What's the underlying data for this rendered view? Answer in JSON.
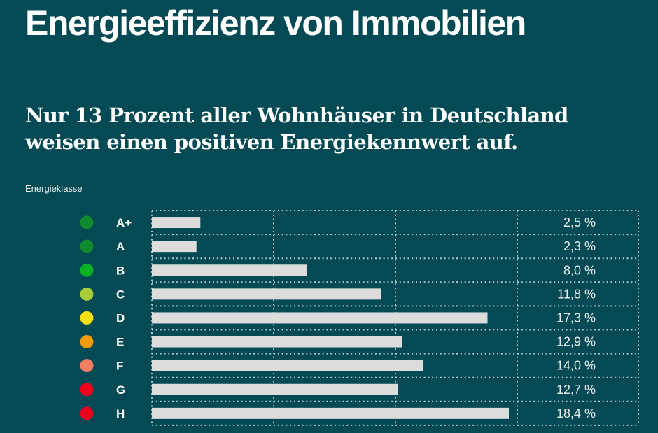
{
  "title": "Energieeffizienz von Immobilien",
  "subtitle_line1": "Nur 13 Prozent aller Wohnhäuser in Deutschland",
  "subtitle_line2": "weisen einen positiven Energiekennwert auf.",
  "chart_data": {
    "type": "bar",
    "orientation": "horizontal",
    "title": "Energieeffizienz von Immobilien",
    "category_axis_label": "Energieklasse",
    "categories": [
      "A+",
      "A",
      "B",
      "C",
      "D",
      "E",
      "F",
      "G",
      "H"
    ],
    "values": [
      2.5,
      2.3,
      8.0,
      11.8,
      17.3,
      12.9,
      14.0,
      12.7,
      18.4
    ],
    "value_labels": [
      "2,5 %",
      "2,3 %",
      "8,0 %",
      "11,8 %",
      "17,3 %",
      "12,9 %",
      "14,0 %",
      "12,7 %",
      "18,4 %"
    ],
    "unit": "%",
    "class_colors": [
      "#0f8a2e",
      "#0f8a2e",
      "#0cb024",
      "#a8cc3c",
      "#f5e112",
      "#f59a0c",
      "#f47d63",
      "#f0001c",
      "#e8001f"
    ],
    "bar_color": "#dcdcdc",
    "grid": true,
    "xlim": [
      0,
      18.4
    ]
  },
  "colors": {
    "background": "#044a55",
    "text": "#ffffff",
    "grid": "#cfe3e6"
  }
}
